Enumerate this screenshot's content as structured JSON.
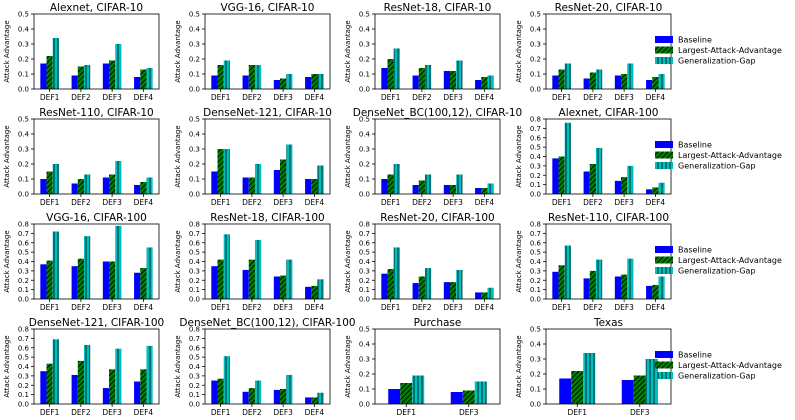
{
  "figure": {
    "legend_placement": "right of each row",
    "colors": {
      "Baseline": "#0000ff",
      "Largest-Attack-Advantage": "#008000",
      "Generalization-Gap": "#00bfbf"
    },
    "hatches": {
      "Baseline": "none",
      "Largest-Attack-Advantage": "diagonal",
      "Generalization-Gap": "vertical"
    }
  },
  "legend": {
    "entries": [
      "Baseline",
      "Largest-Attack-Advantage",
      "Generalization-Gap"
    ]
  },
  "chart_data": [
    {
      "type": "bar",
      "title": "Alexnet, CIFAR-10",
      "xlabel": "",
      "ylabel": "Attack Advantage",
      "ylim": [
        0,
        0.5
      ],
      "yticks": [
        "0.0",
        "0.1",
        "0.2",
        "0.3",
        "0.4",
        "0.5"
      ],
      "grid": false,
      "categories": [
        "DEF1",
        "DEF2",
        "DEF3",
        "DEF4"
      ],
      "series": [
        {
          "name": "Baseline",
          "values": [
            0.17,
            0.09,
            0.17,
            0.08
          ]
        },
        {
          "name": "Largest-Attack-Advantage",
          "values": [
            0.22,
            0.15,
            0.19,
            0.13
          ]
        },
        {
          "name": "Generalization-Gap",
          "values": [
            0.34,
            0.16,
            0.3,
            0.14
          ]
        }
      ]
    },
    {
      "type": "bar",
      "title": "VGG-16, CIFAR-10",
      "xlabel": "",
      "ylabel": "Attack Advantage",
      "ylim": [
        0,
        0.5
      ],
      "yticks": [
        "0.0",
        "0.1",
        "0.2",
        "0.3",
        "0.4",
        "0.5"
      ],
      "grid": false,
      "categories": [
        "DEF1",
        "DEF2",
        "DEF3",
        "DEF4"
      ],
      "series": [
        {
          "name": "Baseline",
          "values": [
            0.09,
            0.09,
            0.06,
            0.08
          ]
        },
        {
          "name": "Largest-Attack-Advantage",
          "values": [
            0.16,
            0.16,
            0.07,
            0.1
          ]
        },
        {
          "name": "Generalization-Gap",
          "values": [
            0.19,
            0.16,
            0.1,
            0.1
          ]
        }
      ]
    },
    {
      "type": "bar",
      "title": "ResNet-18, CIFAR-10",
      "xlabel": "",
      "ylabel": "Attack Advantage",
      "ylim": [
        0,
        0.5
      ],
      "yticks": [
        "0.0",
        "0.1",
        "0.2",
        "0.3",
        "0.4",
        "0.5"
      ],
      "grid": false,
      "categories": [
        "DEF1",
        "DEF2",
        "DEF3",
        "DEF4"
      ],
      "series": [
        {
          "name": "Baseline",
          "values": [
            0.14,
            0.09,
            0.12,
            0.06
          ]
        },
        {
          "name": "Largest-Attack-Advantage",
          "values": [
            0.2,
            0.14,
            0.12,
            0.08
          ]
        },
        {
          "name": "Generalization-Gap",
          "values": [
            0.27,
            0.16,
            0.19,
            0.09
          ]
        }
      ]
    },
    {
      "type": "bar",
      "title": "ResNet-20, CIFAR-10",
      "xlabel": "",
      "ylabel": "Attack Advantage",
      "ylim": [
        0,
        0.5
      ],
      "yticks": [
        "0.0",
        "0.1",
        "0.2",
        "0.3",
        "0.4",
        "0.5"
      ],
      "grid": false,
      "categories": [
        "DEF1",
        "DEF2",
        "DEF3",
        "DEF4"
      ],
      "series": [
        {
          "name": "Baseline",
          "values": [
            0.09,
            0.07,
            0.09,
            0.06
          ]
        },
        {
          "name": "Largest-Attack-Advantage",
          "values": [
            0.13,
            0.11,
            0.1,
            0.08
          ]
        },
        {
          "name": "Generalization-Gap",
          "values": [
            0.17,
            0.13,
            0.17,
            0.1
          ]
        }
      ]
    },
    {
      "type": "bar",
      "title": "ResNet-110, CIFAR-10",
      "xlabel": "",
      "ylabel": "Attack Advantage",
      "ylim": [
        0,
        0.5
      ],
      "yticks": [
        "0.0",
        "0.1",
        "0.2",
        "0.3",
        "0.4",
        "0.5"
      ],
      "grid": false,
      "categories": [
        "DEF1",
        "DEF2",
        "DEF3",
        "DEF4"
      ],
      "series": [
        {
          "name": "Baseline",
          "values": [
            0.1,
            0.07,
            0.11,
            0.06
          ]
        },
        {
          "name": "Largest-Attack-Advantage",
          "values": [
            0.15,
            0.1,
            0.13,
            0.08
          ]
        },
        {
          "name": "Generalization-Gap",
          "values": [
            0.2,
            0.13,
            0.22,
            0.11
          ]
        }
      ]
    },
    {
      "type": "bar",
      "title": "DenseNet-121, CIFAR-10",
      "xlabel": "",
      "ylabel": "Attack Advantage",
      "ylim": [
        0,
        0.5
      ],
      "yticks": [
        "0.0",
        "0.1",
        "0.2",
        "0.3",
        "0.4",
        "0.5"
      ],
      "grid": false,
      "categories": [
        "DEF1",
        "DEF2",
        "DEF3",
        "DEF4"
      ],
      "series": [
        {
          "name": "Baseline",
          "values": [
            0.15,
            0.11,
            0.16,
            0.1
          ]
        },
        {
          "name": "Largest-Attack-Advantage",
          "values": [
            0.3,
            0.11,
            0.23,
            0.1
          ]
        },
        {
          "name": "Generalization-Gap",
          "values": [
            0.3,
            0.2,
            0.33,
            0.19
          ]
        }
      ]
    },
    {
      "type": "bar",
      "title": "DenseNet_BC(100,12), CIFAR-10",
      "xlabel": "",
      "ylabel": "Attack Advantage",
      "ylim": [
        0,
        0.5
      ],
      "yticks": [
        "0.0",
        "0.1",
        "0.2",
        "0.3",
        "0.4",
        "0.5"
      ],
      "grid": false,
      "categories": [
        "DEF1",
        "DEF2",
        "DEF3",
        "DEF4"
      ],
      "series": [
        {
          "name": "Baseline",
          "values": [
            0.1,
            0.06,
            0.06,
            0.04
          ]
        },
        {
          "name": "Largest-Attack-Advantage",
          "values": [
            0.13,
            0.09,
            0.06,
            0.04
          ]
        },
        {
          "name": "Generalization-Gap",
          "values": [
            0.2,
            0.13,
            0.13,
            0.07
          ]
        }
      ]
    },
    {
      "type": "bar",
      "title": "Alexnet, CIFAR-100",
      "xlabel": "",
      "ylabel": "Attack Advantage",
      "ylim": [
        0,
        0.8
      ],
      "yticks": [
        "0.0",
        "0.1",
        "0.2",
        "0.3",
        "0.4",
        "0.5",
        "0.6",
        "0.7",
        "0.8"
      ],
      "grid": false,
      "categories": [
        "DEF1",
        "DEF2",
        "DEF3",
        "DEF4"
      ],
      "series": [
        {
          "name": "Baseline",
          "values": [
            0.38,
            0.24,
            0.14,
            0.05
          ]
        },
        {
          "name": "Largest-Attack-Advantage",
          "values": [
            0.4,
            0.32,
            0.18,
            0.07
          ]
        },
        {
          "name": "Generalization-Gap",
          "values": [
            0.76,
            0.49,
            0.3,
            0.12
          ]
        }
      ]
    },
    {
      "type": "bar",
      "title": "VGG-16, CIFAR-100",
      "xlabel": "",
      "ylabel": "Attack Advantage",
      "ylim": [
        0,
        0.8
      ],
      "yticks": [
        "0.0",
        "0.1",
        "0.2",
        "0.3",
        "0.4",
        "0.5",
        "0.6",
        "0.7",
        "0.8"
      ],
      "grid": false,
      "categories": [
        "DEF1",
        "DEF2",
        "DEF3",
        "DEF4"
      ],
      "series": [
        {
          "name": "Baseline",
          "values": [
            0.37,
            0.35,
            0.4,
            0.28
          ]
        },
        {
          "name": "Largest-Attack-Advantage",
          "values": [
            0.41,
            0.43,
            0.4,
            0.33
          ]
        },
        {
          "name": "Generalization-Gap",
          "values": [
            0.72,
            0.67,
            0.78,
            0.55
          ]
        }
      ]
    },
    {
      "type": "bar",
      "title": "ResNet-18, CIFAR-100",
      "xlabel": "",
      "ylabel": "Attack Advantage",
      "ylim": [
        0,
        0.8
      ],
      "yticks": [
        "0.0",
        "0.1",
        "0.2",
        "0.3",
        "0.4",
        "0.5",
        "0.6",
        "0.7",
        "0.8"
      ],
      "grid": false,
      "categories": [
        "DEF1",
        "DEF2",
        "DEF3",
        "DEF4"
      ],
      "series": [
        {
          "name": "Baseline",
          "values": [
            0.35,
            0.31,
            0.24,
            0.13
          ]
        },
        {
          "name": "Largest-Attack-Advantage",
          "values": [
            0.42,
            0.42,
            0.25,
            0.14
          ]
        },
        {
          "name": "Generalization-Gap",
          "values": [
            0.69,
            0.63,
            0.42,
            0.21
          ]
        }
      ]
    },
    {
      "type": "bar",
      "title": "ResNet-20, CIFAR-100",
      "xlabel": "",
      "ylabel": "Attack Advantage",
      "ylim": [
        0,
        0.8
      ],
      "yticks": [
        "0.0",
        "0.1",
        "0.2",
        "0.3",
        "0.4",
        "0.5",
        "0.6",
        "0.7",
        "0.8"
      ],
      "grid": false,
      "categories": [
        "DEF1",
        "DEF2",
        "DEF3",
        "DEF4"
      ],
      "series": [
        {
          "name": "Baseline",
          "values": [
            0.27,
            0.17,
            0.18,
            0.07
          ]
        },
        {
          "name": "Largest-Attack-Advantage",
          "values": [
            0.32,
            0.24,
            0.18,
            0.07
          ]
        },
        {
          "name": "Generalization-Gap",
          "values": [
            0.55,
            0.33,
            0.31,
            0.12
          ]
        }
      ]
    },
    {
      "type": "bar",
      "title": "ResNet-110, CIFAR-100",
      "xlabel": "",
      "ylabel": "Attack Advantage",
      "ylim": [
        0,
        0.8
      ],
      "yticks": [
        "0.0",
        "0.1",
        "0.2",
        "0.3",
        "0.4",
        "0.5",
        "0.6",
        "0.7",
        "0.8"
      ],
      "grid": false,
      "categories": [
        "DEF1",
        "DEF2",
        "DEF3",
        "DEF4"
      ],
      "series": [
        {
          "name": "Baseline",
          "values": [
            0.29,
            0.22,
            0.24,
            0.14
          ]
        },
        {
          "name": "Largest-Attack-Advantage",
          "values": [
            0.36,
            0.3,
            0.26,
            0.15
          ]
        },
        {
          "name": "Generalization-Gap",
          "values": [
            0.57,
            0.42,
            0.43,
            0.24
          ]
        }
      ]
    },
    {
      "type": "bar",
      "title": "DenseNet-121, CIFAR-100",
      "xlabel": "",
      "ylabel": "Attack Advantage",
      "ylim": [
        0,
        0.8
      ],
      "yticks": [
        "0.0",
        "0.1",
        "0.2",
        "0.3",
        "0.4",
        "0.5",
        "0.6",
        "0.7",
        "0.8"
      ],
      "grid": false,
      "categories": [
        "DEF1",
        "DEF2",
        "DEF3",
        "DEF4"
      ],
      "series": [
        {
          "name": "Baseline",
          "values": [
            0.35,
            0.31,
            0.17,
            0.24
          ]
        },
        {
          "name": "Largest-Attack-Advantage",
          "values": [
            0.43,
            0.46,
            0.37,
            0.37
          ]
        },
        {
          "name": "Generalization-Gap",
          "values": [
            0.69,
            0.63,
            0.59,
            0.62
          ]
        }
      ]
    },
    {
      "type": "bar",
      "title": "DenseNet_BC(100,12), CIFAR-100",
      "xlabel": "",
      "ylabel": "Attack Advantage",
      "ylim": [
        0,
        0.8
      ],
      "yticks": [
        "0.0",
        "0.1",
        "0.2",
        "0.3",
        "0.4",
        "0.5",
        "0.6",
        "0.7",
        "0.8"
      ],
      "grid": false,
      "categories": [
        "DEF1",
        "DEF2",
        "DEF3",
        "DEF4"
      ],
      "series": [
        {
          "name": "Baseline",
          "values": [
            0.25,
            0.13,
            0.15,
            0.07
          ]
        },
        {
          "name": "Largest-Attack-Advantage",
          "values": [
            0.27,
            0.17,
            0.16,
            0.07
          ]
        },
        {
          "name": "Generalization-Gap",
          "values": [
            0.51,
            0.25,
            0.31,
            0.12
          ]
        }
      ]
    },
    {
      "type": "bar",
      "title": "Purchase",
      "xlabel": "",
      "ylabel": "Attack Advantage",
      "ylim": [
        0,
        0.5
      ],
      "yticks": [
        "0.0",
        "0.1",
        "0.2",
        "0.3",
        "0.4",
        "0.5"
      ],
      "grid": false,
      "categories": [
        "DEF1",
        "DEF3"
      ],
      "series": [
        {
          "name": "Baseline",
          "values": [
            0.1,
            0.08
          ]
        },
        {
          "name": "Largest-Attack-Advantage",
          "values": [
            0.14,
            0.09
          ]
        },
        {
          "name": "Generalization-Gap",
          "values": [
            0.19,
            0.15
          ]
        }
      ]
    },
    {
      "type": "bar",
      "title": "Texas",
      "xlabel": "",
      "ylabel": "Attack Advantage",
      "ylim": [
        0,
        0.5
      ],
      "yticks": [
        "0.0",
        "0.1",
        "0.2",
        "0.3",
        "0.4",
        "0.5"
      ],
      "grid": false,
      "categories": [
        "DEF1",
        "DEF3"
      ],
      "series": [
        {
          "name": "Baseline",
          "values": [
            0.17,
            0.16
          ]
        },
        {
          "name": "Largest-Attack-Advantage",
          "values": [
            0.22,
            0.19
          ]
        },
        {
          "name": "Generalization-Gap",
          "values": [
            0.34,
            0.3
          ]
        }
      ]
    }
  ]
}
